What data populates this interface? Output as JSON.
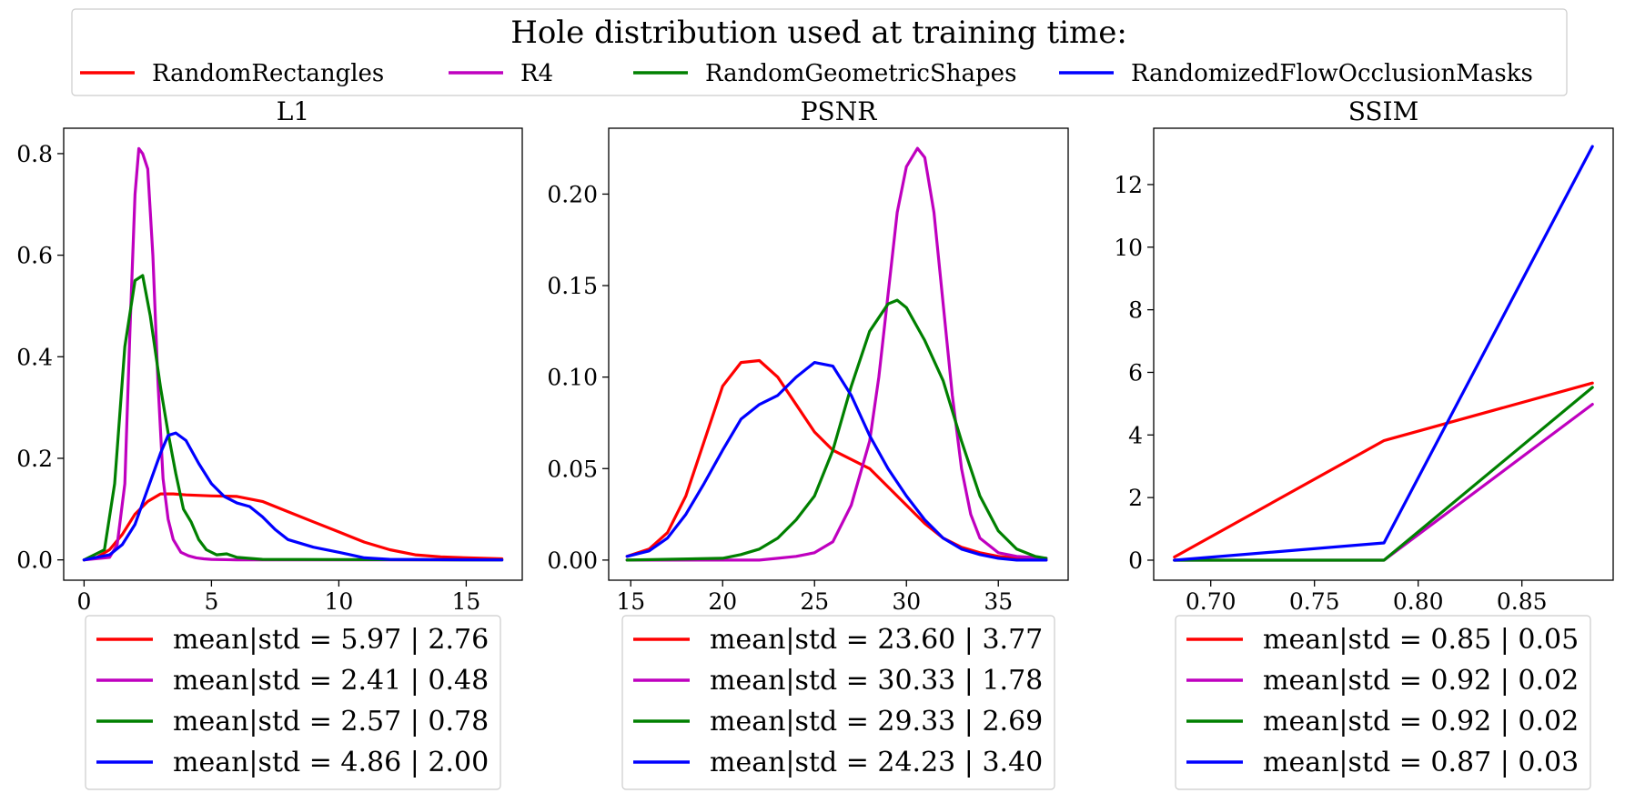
{
  "figure": {
    "suptitle": "Hole distribution used at training time:",
    "series_names": [
      "RandomRectangles",
      "R4",
      "RandomGeometricShapes",
      "RandomizedFlowOcclusionMasks"
    ],
    "colors": {
      "red": "#ff0000",
      "magenta": "#bf00bf",
      "green": "#008000",
      "blue": "#0000ff"
    }
  },
  "chart_data": [
    {
      "type": "line",
      "title": "L1",
      "xlabel": "",
      "ylabel": "",
      "xlim": [
        -0.8,
        17.2
      ],
      "ylim": [
        -0.04,
        0.85
      ],
      "xticks": [
        0,
        5,
        10,
        15
      ],
      "xtick_labels": [
        "0",
        "5",
        "10",
        "15"
      ],
      "yticks": [
        0.0,
        0.2,
        0.4,
        0.6,
        0.8
      ],
      "ytick_labels": [
        "0.0",
        "0.2",
        "0.4",
        "0.6",
        "0.8"
      ],
      "series": [
        {
          "name": "RandomRectangles",
          "color": "#ff0000",
          "label": "mean|std = 5.97 | 2.76",
          "x": [
            0,
            0.5,
            1,
            1.5,
            2,
            2.5,
            3,
            3.5,
            4,
            5,
            6,
            7,
            8,
            9,
            10,
            11,
            12,
            13,
            14,
            15,
            16.4
          ],
          "y": [
            0.0,
            0.005,
            0.02,
            0.05,
            0.09,
            0.115,
            0.13,
            0.13,
            0.128,
            0.126,
            0.125,
            0.115,
            0.095,
            0.075,
            0.055,
            0.035,
            0.02,
            0.01,
            0.006,
            0.004,
            0.002
          ]
        },
        {
          "name": "R4",
          "color": "#bf00bf",
          "label": "mean|std = 2.41 | 0.48",
          "x": [
            0,
            1,
            1.3,
            1.6,
            1.8,
            2.0,
            2.15,
            2.3,
            2.5,
            2.7,
            2.9,
            3.1,
            3.3,
            3.5,
            3.8,
            4.1,
            4.4,
            4.7,
            5,
            6,
            16.4
          ],
          "y": [
            0.0,
            0.005,
            0.03,
            0.15,
            0.45,
            0.72,
            0.81,
            0.8,
            0.77,
            0.6,
            0.35,
            0.16,
            0.08,
            0.04,
            0.015,
            0.008,
            0.004,
            0.002,
            0.001,
            0.0,
            0.0
          ]
        },
        {
          "name": "RandomGeometricShapes",
          "color": "#008000",
          "label": "mean|std = 2.57 | 0.78",
          "x": [
            0,
            0.8,
            1.2,
            1.6,
            2.0,
            2.3,
            2.6,
            3.0,
            3.3,
            3.6,
            3.9,
            4.2,
            4.5,
            4.8,
            5.2,
            5.6,
            6.0,
            7,
            16.4
          ],
          "y": [
            0.0,
            0.02,
            0.15,
            0.42,
            0.55,
            0.56,
            0.48,
            0.34,
            0.25,
            0.17,
            0.1,
            0.075,
            0.04,
            0.02,
            0.01,
            0.012,
            0.005,
            0.001,
            0.0
          ]
        },
        {
          "name": "RandomizedFlowOcclusionMasks",
          "color": "#0000ff",
          "label": "mean|std = 4.86 | 2.00",
          "x": [
            0,
            1,
            1.5,
            2,
            2.5,
            3,
            3.3,
            3.6,
            4,
            4.5,
            5,
            5.5,
            6,
            6.5,
            7,
            7.5,
            8,
            9,
            10,
            11,
            12,
            16.4
          ],
          "y": [
            0.0,
            0.01,
            0.03,
            0.07,
            0.14,
            0.21,
            0.245,
            0.25,
            0.235,
            0.19,
            0.15,
            0.125,
            0.112,
            0.105,
            0.085,
            0.06,
            0.04,
            0.025,
            0.015,
            0.004,
            0.001,
            0.0
          ]
        }
      ]
    },
    {
      "type": "line",
      "title": "PSNR",
      "xlabel": "",
      "ylabel": "",
      "xlim": [
        13.8,
        38.8
      ],
      "ylim": [
        -0.011,
        0.236
      ],
      "xticks": [
        15,
        20,
        25,
        30,
        35
      ],
      "xtick_labels": [
        "15",
        "20",
        "25",
        "30",
        "35"
      ],
      "yticks": [
        0.0,
        0.05,
        0.1,
        0.15,
        0.2
      ],
      "ytick_labels": [
        "0.00",
        "0.05",
        "0.10",
        "0.15",
        "0.20"
      ],
      "series": [
        {
          "name": "RandomRectangles",
          "color": "#ff0000",
          "label": "mean|std = 23.60 | 3.77",
          "x": [
            14.8,
            16,
            17,
            18,
            19,
            20,
            21,
            22,
            23,
            24,
            25,
            26,
            27,
            28,
            29,
            30,
            31,
            32,
            33,
            34,
            35,
            36,
            37.6
          ],
          "y": [
            0.002,
            0.006,
            0.015,
            0.035,
            0.065,
            0.095,
            0.108,
            0.109,
            0.1,
            0.085,
            0.07,
            0.06,
            0.055,
            0.05,
            0.04,
            0.03,
            0.02,
            0.012,
            0.007,
            0.004,
            0.002,
            0.001,
            0.0
          ]
        },
        {
          "name": "R4",
          "color": "#bf00bf",
          "label": "mean|std = 30.33 | 1.78",
          "x": [
            14.8,
            22,
            23,
            24,
            25,
            26,
            27,
            28,
            28.5,
            29,
            29.5,
            30,
            30.6,
            31,
            31.5,
            32,
            32.5,
            33,
            33.5,
            34,
            35,
            36,
            37.6
          ],
          "y": [
            0.0,
            0.0,
            0.001,
            0.002,
            0.004,
            0.01,
            0.03,
            0.065,
            0.1,
            0.145,
            0.19,
            0.215,
            0.225,
            0.22,
            0.19,
            0.14,
            0.09,
            0.05,
            0.025,
            0.012,
            0.004,
            0.002,
            0.001
          ]
        },
        {
          "name": "RandomGeometricShapes",
          "color": "#008000",
          "label": "mean|std = 29.33 | 2.69",
          "x": [
            14.8,
            20,
            21,
            22,
            23,
            24,
            25,
            26,
            27,
            28,
            29,
            29.5,
            30,
            31,
            32,
            33,
            34,
            35,
            36,
            37,
            37.6
          ],
          "y": [
            0.0,
            0.001,
            0.003,
            0.006,
            0.012,
            0.022,
            0.035,
            0.06,
            0.095,
            0.125,
            0.14,
            0.142,
            0.138,
            0.12,
            0.098,
            0.065,
            0.035,
            0.016,
            0.006,
            0.002,
            0.001
          ]
        },
        {
          "name": "RandomizedFlowOcclusionMasks",
          "color": "#0000ff",
          "label": "mean|std = 24.23 | 3.40",
          "x": [
            14.8,
            16,
            17,
            18,
            19,
            20,
            21,
            22,
            23,
            24,
            25,
            26,
            27,
            28,
            29,
            30,
            31,
            32,
            33,
            34,
            35,
            36,
            37.6
          ],
          "y": [
            0.002,
            0.005,
            0.012,
            0.025,
            0.042,
            0.06,
            0.077,
            0.085,
            0.09,
            0.1,
            0.108,
            0.106,
            0.09,
            0.068,
            0.05,
            0.035,
            0.022,
            0.012,
            0.006,
            0.003,
            0.001,
            0.0,
            0.0
          ]
        }
      ]
    },
    {
      "type": "line",
      "title": "SSIM",
      "xlabel": "",
      "ylabel": "",
      "xlim": [
        0.6725,
        0.894
      ],
      "ylim": [
        -0.64,
        13.8
      ],
      "xticks": [
        0.7,
        0.75,
        0.8,
        0.85
      ],
      "xtick_labels": [
        "0.70",
        "0.75",
        "0.80",
        "0.85"
      ],
      "yticks": [
        0,
        2,
        4,
        6,
        8,
        10,
        12
      ],
      "ytick_labels": [
        "0",
        "2",
        "4",
        "6",
        "8",
        "10",
        "12"
      ],
      "series": [
        {
          "name": "RandomRectangles",
          "color": "#ff0000",
          "label": "mean|std = 0.85 | 0.05",
          "x": [
            0.6825,
            0.7835,
            0.884
          ],
          "y": [
            0.1,
            3.82,
            5.66
          ]
        },
        {
          "name": "R4",
          "color": "#bf00bf",
          "label": "mean|std = 0.92 | 0.02",
          "x": [
            0.6825,
            0.7835,
            0.884
          ],
          "y": [
            0.0,
            0.0,
            4.98
          ]
        },
        {
          "name": "RandomGeometricShapes",
          "color": "#008000",
          "label": "mean|std = 0.92 | 0.02",
          "x": [
            0.6825,
            0.7835,
            0.884
          ],
          "y": [
            0.0,
            0.0,
            5.52
          ]
        },
        {
          "name": "RandomizedFlowOcclusionMasks",
          "color": "#0000ff",
          "label": "mean|std = 0.87 | 0.03",
          "x": [
            0.6825,
            0.7835,
            0.884
          ],
          "y": [
            0.0,
            0.55,
            13.22
          ]
        }
      ]
    }
  ]
}
